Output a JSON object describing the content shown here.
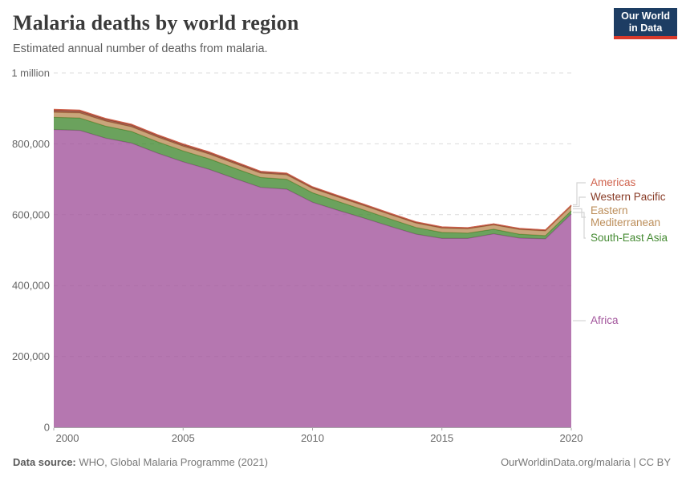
{
  "header": {
    "title": "Malaria deaths by world region",
    "subtitle": "Estimated annual number of deaths from malaria.",
    "logo": {
      "line1": "Our World",
      "line2": "in Data",
      "bg_color": "#1d3d63",
      "accent_color": "#d93a2b"
    }
  },
  "footer": {
    "source_label": "Data source:",
    "source_text": "WHO, Global Malaria Programme (2021)",
    "link_text": "OurWorldinData.org/malaria | CC BY"
  },
  "legend": [
    {
      "label": "Americas",
      "color": "#d0634e"
    },
    {
      "label": "Western Pacific",
      "color": "#883b26"
    },
    {
      "label": "Eastern Mediterranean",
      "color": "#bc8e5a"
    },
    {
      "label": "South-East Asia",
      "color": "#468b34"
    },
    {
      "label": "Africa",
      "color": "#a2559c"
    }
  ],
  "chart_data": {
    "type": "area",
    "stacked": true,
    "title": "Malaria deaths by world region",
    "xlabel": "",
    "ylabel": "",
    "x": [
      2000,
      2001,
      2002,
      2003,
      2004,
      2005,
      2006,
      2007,
      2008,
      2009,
      2010,
      2011,
      2012,
      2013,
      2014,
      2015,
      2016,
      2017,
      2018,
      2019,
      2020
    ],
    "series": [
      {
        "name": "Africa",
        "color": "#a2559c",
        "values": [
          840000,
          838000,
          816000,
          802000,
          774000,
          749000,
          728000,
          702000,
          677000,
          672000,
          635000,
          612000,
          590000,
          567000,
          545000,
          533000,
          533000,
          546000,
          534000,
          532000,
          602000
        ]
      },
      {
        "name": "South-East Asia",
        "color": "#468b34",
        "values": [
          35000,
          35000,
          34000,
          33000,
          32000,
          31000,
          30000,
          29000,
          28000,
          28000,
          27000,
          25000,
          23000,
          21000,
          19000,
          17000,
          15000,
          13000,
          11000,
          9000,
          9000
        ]
      },
      {
        "name": "Eastern Mediterranean",
        "color": "#bc8e5a",
        "values": [
          14000,
          14000,
          14000,
          13000,
          13000,
          13000,
          13000,
          13000,
          12000,
          12000,
          12000,
          12000,
          12000,
          12000,
          12000,
          12000,
          12000,
          12000,
          13000,
          13000,
          13000
        ]
      },
      {
        "name": "Western Pacific",
        "color": "#883b26",
        "values": [
          6500,
          6300,
          6000,
          5800,
          5500,
          5200,
          5000,
          4700,
          4400,
          4200,
          3900,
          3700,
          3500,
          3300,
          3100,
          2900,
          2800,
          2700,
          2600,
          2500,
          2400
        ]
      },
      {
        "name": "Americas",
        "color": "#d0634e",
        "values": [
          1900,
          1800,
          1700,
          1600,
          1500,
          1400,
          1300,
          1200,
          1100,
          1000,
          900,
          850,
          800,
          750,
          700,
          650,
          600,
          600,
          600,
          600,
          600
        ]
      }
    ],
    "xticks": [
      "2000",
      "2005",
      "2010",
      "2015",
      "2020"
    ],
    "xtick_values": [
      2000,
      2005,
      2010,
      2015,
      2020
    ],
    "yticks": [
      {
        "value": 0,
        "label": "0"
      },
      {
        "value": 200000,
        "label": "200,000"
      },
      {
        "value": 400000,
        "label": "400,000"
      },
      {
        "value": 600000,
        "label": "600,000"
      },
      {
        "value": 800000,
        "label": "800,000"
      },
      {
        "value": 1000000,
        "label": "1 million"
      }
    ],
    "ylim": [
      0,
      1000000
    ],
    "grid": "horizontal dashed",
    "legend_position": "right",
    "fill_opacity": 0.8
  }
}
